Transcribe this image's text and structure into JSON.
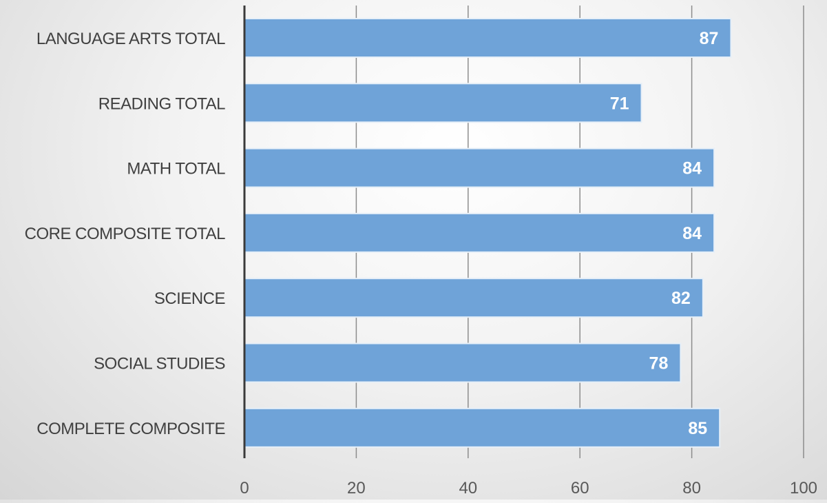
{
  "chart_data": {
    "type": "bar",
    "orientation": "horizontal",
    "categories": [
      "LANGUAGE ARTS TOTAL",
      "READING TOTAL",
      "MATH TOTAL",
      "CORE COMPOSITE TOTAL",
      "SCIENCE",
      "SOCIAL STUDIES",
      "COMPLETE COMPOSITE"
    ],
    "values": [
      87,
      71,
      84,
      84,
      82,
      78,
      85
    ],
    "data_labels": [
      "87",
      "71",
      "84",
      "84",
      "82",
      "78",
      "85"
    ],
    "xlim": [
      0,
      100
    ],
    "x_ticks": [
      "0",
      "20",
      "40",
      "60",
      "80",
      "100"
    ],
    "grid": true,
    "bar_color": "#6fa3d8",
    "bar_border_color": "#e6eff8",
    "label_color": "#ffffff",
    "title": "",
    "xlabel": "",
    "ylabel": ""
  }
}
